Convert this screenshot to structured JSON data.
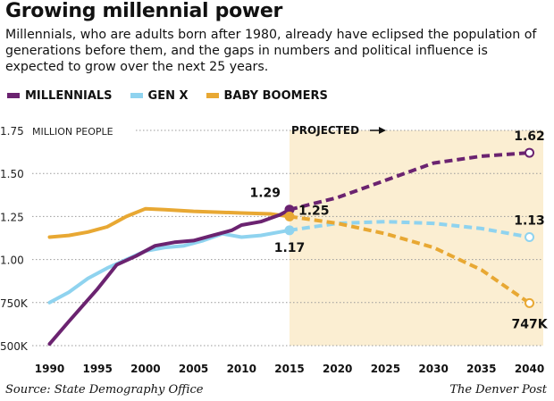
{
  "header": {
    "title": "Growing millennial power",
    "subtitle": "Millennials, who are adults born after 1980, already have eclipsed the population of generations before them, and the gaps in numbers and political influence is expected to grow over the next 25 years."
  },
  "footer": {
    "source": "Source: State Demography Office",
    "credit": "The Denver Post"
  },
  "chart_data": {
    "type": "line",
    "y_unit_label": "MILLION PEOPLE",
    "projected_label": "PROJECTED",
    "projected_start": 2015,
    "xlim": [
      1988,
      2042
    ],
    "ylim": [
      0.5,
      1.75
    ],
    "x_ticks": [
      1990,
      1995,
      2000,
      2005,
      2010,
      2015,
      2020,
      2025,
      2030,
      2035,
      2040
    ],
    "y_ticks": [
      {
        "value": 0.5,
        "label": "500K"
      },
      {
        "value": 0.75,
        "label": "750K"
      },
      {
        "value": 1.0,
        "label": "1.00"
      },
      {
        "value": 1.25,
        "label": "1.25"
      },
      {
        "value": 1.5,
        "label": "1.50"
      },
      {
        "value": 1.75,
        "label": "1.75"
      }
    ],
    "legend_position": "top-left",
    "series": [
      {
        "name": "MILLENNIALS",
        "color": "#6b2370",
        "actual": [
          [
            1990,
            0.51
          ],
          [
            1992,
            0.64
          ],
          [
            1995,
            0.83
          ],
          [
            1997,
            0.97
          ],
          [
            1999,
            1.02
          ],
          [
            2001,
            1.08
          ],
          [
            2003,
            1.1
          ],
          [
            2005,
            1.11
          ],
          [
            2007,
            1.14
          ],
          [
            2009,
            1.17
          ],
          [
            2010,
            1.2
          ],
          [
            2012,
            1.22
          ],
          [
            2014,
            1.26
          ],
          [
            2015,
            1.29
          ]
        ],
        "projected": [
          [
            2015,
            1.29
          ],
          [
            2020,
            1.36
          ],
          [
            2025,
            1.46
          ],
          [
            2030,
            1.56
          ],
          [
            2035,
            1.6
          ],
          [
            2040,
            1.62
          ]
        ],
        "labels": [
          {
            "x": 2015,
            "y": 1.29,
            "text": "1.29"
          },
          {
            "x": 2040,
            "y": 1.62,
            "text": "1.62"
          }
        ]
      },
      {
        "name": "GEN X",
        "color": "#8fd3ef",
        "actual": [
          [
            1990,
            0.75
          ],
          [
            1992,
            0.81
          ],
          [
            1994,
            0.89
          ],
          [
            1996,
            0.95
          ],
          [
            1998,
            1.0
          ],
          [
            2000,
            1.05
          ],
          [
            2002,
            1.07
          ],
          [
            2004,
            1.08
          ],
          [
            2006,
            1.11
          ],
          [
            2008,
            1.15
          ],
          [
            2010,
            1.13
          ],
          [
            2012,
            1.14
          ],
          [
            2015,
            1.17
          ]
        ],
        "projected": [
          [
            2015,
            1.17
          ],
          [
            2020,
            1.21
          ],
          [
            2025,
            1.22
          ],
          [
            2030,
            1.21
          ],
          [
            2035,
            1.18
          ],
          [
            2040,
            1.13
          ]
        ],
        "labels": [
          {
            "x": 2015,
            "y": 1.17,
            "text": "1.17"
          },
          {
            "x": 2040,
            "y": 1.13,
            "text": "1.13"
          }
        ]
      },
      {
        "name": "BABY BOOMERS",
        "color": "#e8a833",
        "actual": [
          [
            1990,
            1.13
          ],
          [
            1992,
            1.14
          ],
          [
            1994,
            1.16
          ],
          [
            1996,
            1.19
          ],
          [
            1998,
            1.25
          ],
          [
            2000,
            1.295
          ],
          [
            2002,
            1.29
          ],
          [
            2005,
            1.28
          ],
          [
            2010,
            1.27
          ],
          [
            2013,
            1.265
          ],
          [
            2015,
            1.25
          ]
        ],
        "projected": [
          [
            2015,
            1.25
          ],
          [
            2020,
            1.21
          ],
          [
            2025,
            1.15
          ],
          [
            2030,
            1.07
          ],
          [
            2035,
            0.94
          ],
          [
            2040,
            0.747
          ]
        ],
        "labels": [
          {
            "x": 2015,
            "y": 1.25,
            "text": "1.25"
          },
          {
            "x": 2040,
            "y": 0.747,
            "text": "747K"
          }
        ]
      }
    ]
  }
}
